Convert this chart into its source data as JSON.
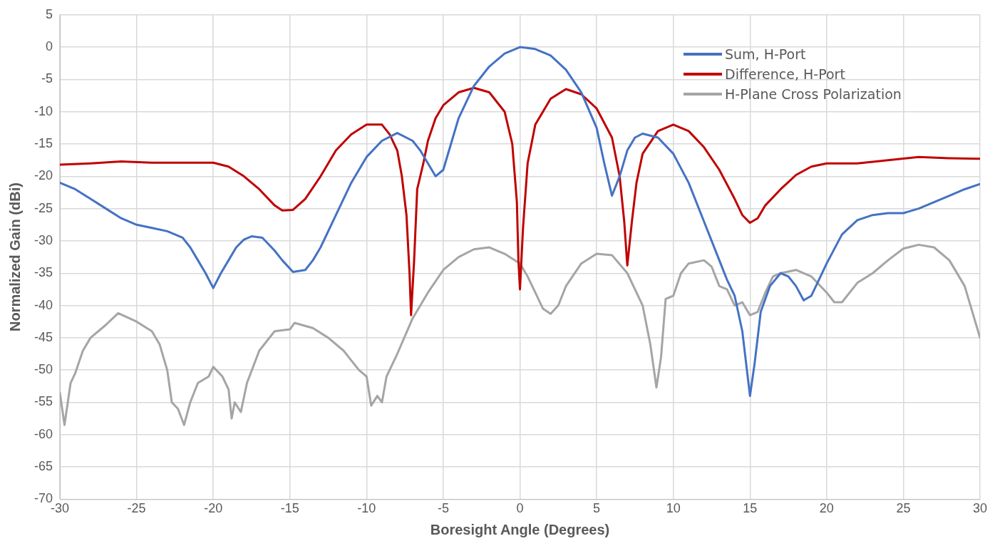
{
  "chart_data": {
    "type": "line",
    "xlabel": "Boresight Angle (Degrees)",
    "ylabel": "Normalized Gain (dBi)",
    "xlim": [
      -30,
      30
    ],
    "xticks": [
      -30,
      -25,
      -20,
      -15,
      -10,
      -5,
      0,
      5,
      10,
      15,
      20,
      25,
      30
    ],
    "ylim": [
      -70,
      5
    ],
    "yticks": [
      5,
      0,
      -5,
      -10,
      -15,
      -20,
      -25,
      -30,
      -35,
      -40,
      -45,
      -50,
      -55,
      -60,
      -65,
      -70
    ],
    "grid": true,
    "legend": "top right",
    "marker": "none",
    "line_style": "solid",
    "series": [
      {
        "name": "Sum, H-Port",
        "color": "#4472c4",
        "x": [
          -30,
          -29,
          -28,
          -27,
          -26,
          -25,
          -24,
          -23,
          -22,
          -21.5,
          -21,
          -20.5,
          -20,
          -19.5,
          -19,
          -18.5,
          -18,
          -17.5,
          -16.8,
          -16,
          -15.5,
          -14.8,
          -14,
          -13.5,
          -13,
          -12,
          -11,
          -10,
          -9,
          -8,
          -7,
          -6.5,
          -6,
          -5.5,
          -5,
          -4.5,
          -4,
          -3,
          -2,
          -1,
          0,
          1,
          2,
          3,
          4,
          5,
          5.5,
          6,
          6.5,
          7,
          7.5,
          8,
          9,
          10,
          11,
          12,
          13,
          13.5,
          14,
          14.5,
          15,
          15.3,
          15.7,
          16.3,
          17,
          17.5,
          18,
          18.5,
          19,
          19.5,
          20,
          21,
          22,
          23,
          24,
          25,
          26,
          27,
          28,
          29,
          30
        ],
        "values": [
          -21,
          -22,
          -23.5,
          -25,
          -26.5,
          -27.5,
          -28,
          -28.5,
          -29.5,
          -31,
          -33,
          -35,
          -37.3,
          -35,
          -33,
          -31,
          -29.8,
          -29.3,
          -29.5,
          -31.5,
          -33,
          -34.8,
          -34.5,
          -33,
          -31,
          -26,
          -21,
          -17,
          -14.5,
          -13.3,
          -14.5,
          -16,
          -18,
          -20,
          -19,
          -15,
          -11,
          -6,
          -3,
          -1,
          0,
          -0.3,
          -1.3,
          -3.5,
          -7,
          -12.5,
          -18,
          -23,
          -20,
          -16,
          -14,
          -13.4,
          -14,
          -16.5,
          -21,
          -27,
          -33,
          -36,
          -38.5,
          -44,
          -54,
          -49,
          -41,
          -37,
          -35,
          -35.5,
          -37,
          -39.2,
          -38.5,
          -36,
          -33.5,
          -29,
          -26.8,
          -26,
          -25.7,
          -25.7,
          -25,
          -24,
          -23,
          -22,
          -21.2
        ]
      },
      {
        "name": "Difference, H-Port",
        "color": "#c00000",
        "x": [
          -30,
          -28,
          -26,
          -24,
          -22,
          -20,
          -19,
          -18,
          -17,
          -16,
          -15.5,
          -14.8,
          -14,
          -13,
          -12,
          -11,
          -10,
          -9,
          -8.5,
          -8,
          -7.7,
          -7.4,
          -7.2,
          -7.1,
          -6.9,
          -6.7,
          -6.3,
          -6,
          -5.5,
          -5,
          -4,
          -3,
          -2,
          -1,
          -0.5,
          -0.2,
          -0.1,
          0,
          0.2,
          0.5,
          1,
          2,
          3,
          4,
          5,
          6,
          6.5,
          6.8,
          7,
          7.3,
          7.6,
          8,
          9,
          10,
          11,
          12,
          13,
          14,
          14.5,
          15,
          15.5,
          16,
          17,
          18,
          19,
          20,
          22,
          24,
          26,
          28,
          30
        ],
        "values": [
          -18.2,
          -18,
          -17.7,
          -17.9,
          -17.9,
          -17.9,
          -18.5,
          -20,
          -22,
          -24.5,
          -25.3,
          -25.2,
          -23.5,
          -20,
          -16,
          -13.5,
          -12,
          -12,
          -13.5,
          -16,
          -20,
          -26,
          -35,
          -41.5,
          -33,
          -22,
          -18,
          -14.5,
          -11,
          -9,
          -7,
          -6.3,
          -7,
          -10,
          -15,
          -24,
          -33,
          -37.5,
          -28,
          -18,
          -12,
          -8,
          -6.5,
          -7.3,
          -9.5,
          -14,
          -20,
          -27,
          -33.8,
          -27,
          -21,
          -16.5,
          -13,
          -12,
          -13,
          -15.5,
          -19,
          -23.5,
          -26,
          -27.2,
          -26.5,
          -24.5,
          -22,
          -19.8,
          -18.5,
          -18,
          -18,
          -17.5,
          -17,
          -17.2,
          -17.3
        ]
      },
      {
        "name": "H-Plane Cross Polarization",
        "color": "#a5a5a5",
        "x": [
          -30,
          -29.7,
          -29.3,
          -29,
          -28.5,
          -28,
          -27,
          -26.2,
          -25,
          -24,
          -23.5,
          -23,
          -22.7,
          -22.3,
          -21.9,
          -21.5,
          -21,
          -20.3,
          -20,
          -19.4,
          -19,
          -18.8,
          -18.6,
          -18.2,
          -17.8,
          -17,
          -16,
          -15,
          -14.7,
          -13.5,
          -12.5,
          -11.5,
          -11,
          -10.5,
          -10,
          -9.7,
          -9.3,
          -9,
          -8.7,
          -8,
          -7,
          -6,
          -5,
          -4,
          -3,
          -2,
          -1,
          0,
          0.5,
          1,
          1.5,
          2,
          2.5,
          3,
          4,
          5,
          6,
          7,
          8,
          8.5,
          8.9,
          9.2,
          9.5,
          10,
          10.5,
          11,
          12,
          12.5,
          13,
          13.5,
          14,
          14.5,
          15,
          15.5,
          16,
          16.5,
          17,
          18,
          19,
          20,
          20.5,
          21,
          22,
          23,
          24,
          25,
          26,
          27,
          28,
          29,
          29.5,
          30
        ],
        "values": [
          -53.5,
          -58.5,
          -52,
          -50.5,
          -47,
          -45,
          -43,
          -41.2,
          -42.5,
          -44,
          -46,
          -50,
          -55,
          -56,
          -58.5,
          -55,
          -52,
          -51,
          -49.5,
          -51,
          -53,
          -57.5,
          -55,
          -56.5,
          -52,
          -47,
          -44,
          -43.7,
          -42.7,
          -43.5,
          -45,
          -47,
          -48.5,
          -50,
          -51,
          -55.5,
          -54,
          -55,
          -51,
          -47.5,
          -42,
          -38,
          -34.5,
          -32.5,
          -31.3,
          -31,
          -32,
          -33.5,
          -35.5,
          -38,
          -40.5,
          -41.3,
          -40,
          -37,
          -33.5,
          -32,
          -32.2,
          -35,
          -40,
          -46,
          -52.7,
          -48,
          -39,
          -38.5,
          -35,
          -33.5,
          -33,
          -34,
          -37,
          -37.5,
          -40,
          -39.5,
          -41.5,
          -41,
          -38,
          -35.5,
          -35,
          -34.5,
          -35.5,
          -38,
          -39.5,
          -39.5,
          -36.5,
          -35,
          -33,
          -31.2,
          -30.6,
          -31,
          -33,
          -37,
          -41,
          -45
        ]
      }
    ]
  }
}
